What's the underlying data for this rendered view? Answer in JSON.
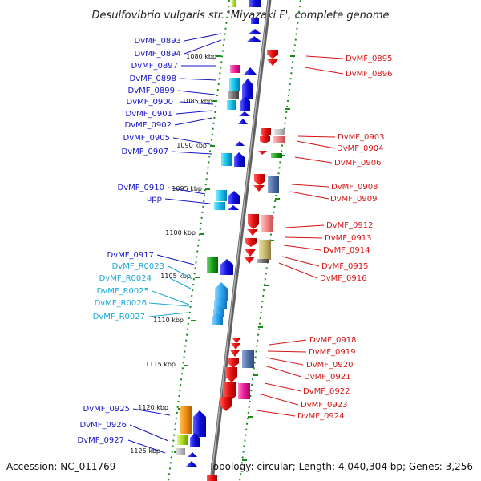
{
  "title": "Desulfovibrio vulgaris str. 'Miyazaki F', complete genome",
  "footer": {
    "accession": "Accession: NC_011769",
    "topology": "Topology: circular; Length: 4,040,304 bp; Genes: 3,256"
  },
  "kbp_labels": [
    "1080 kbp",
    "1085 kbp",
    "1090 kbp",
    "1095 kbp",
    "1100 kbp",
    "1105 kbp",
    "1110 kbp",
    "1115 kbp",
    "1120 kbp",
    "1125 kbp"
  ],
  "left_labels": [
    {
      "text": "DvMF_0893",
      "color": "blue"
    },
    {
      "text": "DvMF_0894",
      "color": "blue"
    },
    {
      "text": "DvMF_0897",
      "color": "blue"
    },
    {
      "text": "DvMF_0898",
      "color": "blue"
    },
    {
      "text": "DvMF_0899",
      "color": "blue"
    },
    {
      "text": "DvMF_0900",
      "color": "blue"
    },
    {
      "text": "DvMF_0901",
      "color": "blue"
    },
    {
      "text": "DvMF_0902",
      "color": "blue"
    },
    {
      "text": "DvMF_0905",
      "color": "blue"
    },
    {
      "text": "DvMF_0907",
      "color": "blue"
    },
    {
      "text": "DvMF_0910",
      "color": "blue"
    },
    {
      "text": "upp",
      "color": "blue"
    },
    {
      "text": "DvMF_0917",
      "color": "blue"
    },
    {
      "text": "DvMF_R0023",
      "color": "cyan"
    },
    {
      "text": "DvMF_R0024",
      "color": "cyan"
    },
    {
      "text": "DvMF_R0025",
      "color": "cyan"
    },
    {
      "text": "DvMF_R0026",
      "color": "cyan"
    },
    {
      "text": "DvMF_R0027",
      "color": "cyan"
    },
    {
      "text": "DvMF_0925",
      "color": "blue"
    },
    {
      "text": "DvMF_0926",
      "color": "blue"
    },
    {
      "text": "DvMF_0927",
      "color": "blue"
    }
  ],
  "right_labels": [
    {
      "text": "DvMF_0895"
    },
    {
      "text": "DvMF_0896"
    },
    {
      "text": "DvMF_0903"
    },
    {
      "text": "DvMF_0904"
    },
    {
      "text": "DvMF_0906"
    },
    {
      "text": "DvMF_0908"
    },
    {
      "text": "DvMF_0909"
    },
    {
      "text": "DvMF_0912"
    },
    {
      "text": "DvMF_0913"
    },
    {
      "text": "DvMF_0914"
    },
    {
      "text": "DvMF_0915"
    },
    {
      "text": "DvMF_0916"
    },
    {
      "text": "DvMF_0918"
    },
    {
      "text": "DvMF_0919"
    },
    {
      "text": "DvMF_0920"
    },
    {
      "text": "DvMF_0921"
    },
    {
      "text": "DvMF_0922"
    },
    {
      "text": "DvMF_0923"
    },
    {
      "text": "DvMF_0924"
    }
  ],
  "colors": {
    "forward_strand": "#1010e0",
    "reverse_strand": "#e81010",
    "rna": "#1aa8d8",
    "backbone": "#808080",
    "tick": "#208020",
    "label_blue": "#1414c8",
    "label_cyan": "#1aa8d8",
    "label_red": "#d81414"
  }
}
